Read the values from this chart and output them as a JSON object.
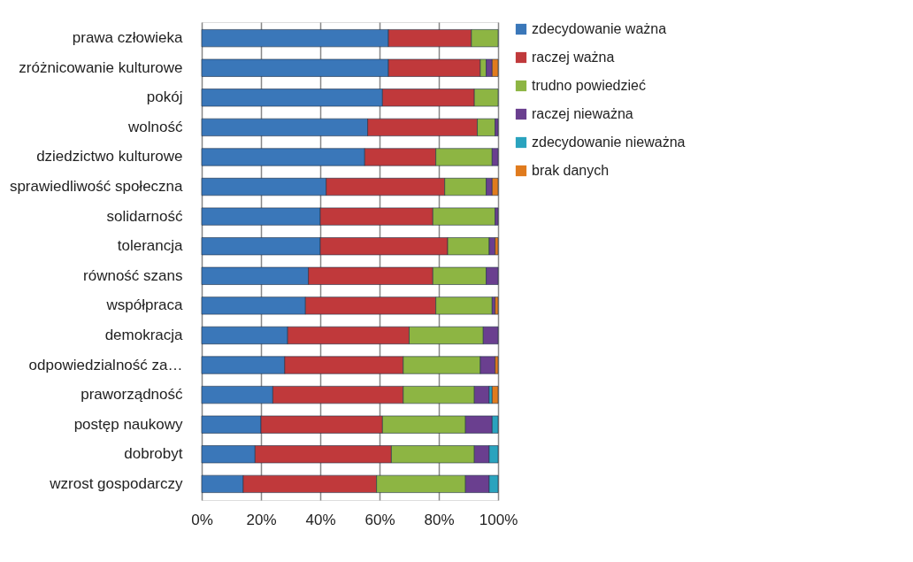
{
  "chart_data": {
    "type": "bar",
    "orientation": "horizontal",
    "stacked": true,
    "grid": "x",
    "legend": "right",
    "categories": [
      "prawa człowieka",
      "zróżnicowanie kulturowe",
      "pokój",
      "wolność",
      "dziedzictwo kulturowe",
      "sprawiedliwość społeczna",
      "solidarność",
      "tolerancja",
      "równość szans",
      "współpraca",
      "demokracja",
      "odpowiedzialność za…",
      "praworządność",
      "postęp naukowy",
      "dobrobyt",
      "wzrost gospodarczy"
    ],
    "xlim": [
      0,
      100
    ],
    "xticks": [
      {
        "value": 0,
        "label": "0%"
      },
      {
        "value": 20,
        "label": "20%"
      },
      {
        "value": 40,
        "label": "40%"
      },
      {
        "value": 60,
        "label": "60%"
      },
      {
        "value": 80,
        "label": "80%"
      },
      {
        "value": 100,
        "label": "100%"
      }
    ],
    "series": [
      {
        "name": "zdecydowanie ważna",
        "color": "#3a77b9",
        "values": [
          63,
          63,
          61,
          56,
          55,
          42,
          40,
          40,
          36,
          35,
          29,
          28,
          24,
          20,
          18,
          14
        ]
      },
      {
        "name": "raczej ważna",
        "color": "#c0393b",
        "values": [
          28,
          31,
          31,
          37,
          24,
          40,
          38,
          43,
          42,
          44,
          41,
          40,
          44,
          41,
          46,
          45
        ]
      },
      {
        "name": "trudno powiedzieć",
        "color": "#8db543",
        "values": [
          9,
          2,
          8,
          6,
          19,
          14,
          21,
          14,
          18,
          19,
          25,
          26,
          24,
          28,
          28,
          30
        ]
      },
      {
        "name": "raczej nieważna",
        "color": "#6a3f8f",
        "values": [
          null,
          2,
          null,
          1,
          2,
          2,
          1,
          2,
          4,
          1,
          5,
          5,
          5,
          9,
          5,
          8
        ]
      },
      {
        "name": "zdecydowanie nieważna",
        "color": "#2aa3be",
        "values": [
          null,
          null,
          null,
          null,
          null,
          null,
          null,
          null,
          null,
          null,
          null,
          null,
          1,
          2,
          3,
          3
        ]
      },
      {
        "name": "brak danych",
        "color": "#e07b1e",
        "values": [
          null,
          2,
          null,
          null,
          null,
          2,
          null,
          1,
          null,
          1,
          null,
          1,
          2,
          null,
          null,
          null
        ]
      }
    ]
  }
}
